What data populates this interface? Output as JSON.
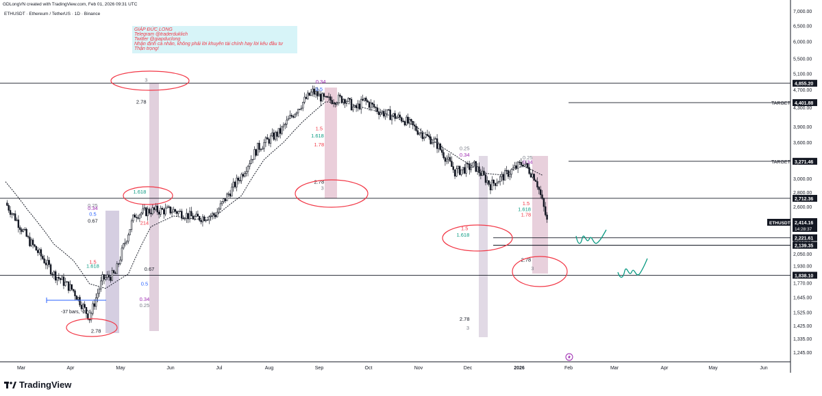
{
  "header": {
    "credit": "GDLongVN created with TradingView.com, Feb 01, 2026 09:31 UTC",
    "symbol_line": "ETHUSDT · Ethereum / TetherUS · 1D · Binance"
  },
  "annotation": {
    "lines": [
      "GIÁP ĐỨC LONG",
      "Telegram @traderduklich",
      "Twitter @giapduclong",
      "Nhận định cá nhân, không phải lời khuyên tài chính hay lời kêu đầu tư",
      "Thận trọng!"
    ]
  },
  "footer": {
    "brand": "TradingView"
  },
  "colors": {
    "candle": "#131722",
    "fib_red": "#f23645",
    "fib_teal": "#089981",
    "fib_blue": "#2962ff",
    "fib_purple": "#9c27b0",
    "target_line": "#131722",
    "drawing_green": "#089981"
  },
  "chart_data": {
    "type": "candlestick",
    "symbol": "ETHUSDT",
    "timeframe": "1D",
    "exchange": "Binance",
    "x_ticks": [
      "Mar",
      "Apr",
      "May",
      "Jun",
      "Jul",
      "Aug",
      "Sep",
      "Oct",
      "Nov",
      "Dec",
      "2026",
      "Feb",
      "Mar",
      "Apr",
      "May",
      "Jun"
    ],
    "y_ticks": [
      7000,
      6500,
      6000,
      5500,
      5100,
      4700,
      4300,
      3900,
      3600,
      3300,
      3000,
      2800,
      2600,
      2400,
      2200,
      2050,
      1930,
      1770,
      1645,
      1525,
      1425,
      1335,
      1245
    ],
    "y_tick_labels": [
      "7,000.00",
      "6,500.00",
      "6,000.00",
      "5,500.00",
      "5,100.00",
      "4,700.00",
      "4,300.00",
      "3,900.00",
      "3,600.00",
      "3,300.00",
      "3,000.00",
      "2,800.00",
      "2,600.00",
      "2,400.00",
      "2,200.00",
      "2,050.00",
      "1,930.00",
      "1,770.00",
      "1,645.00",
      "1,525.00",
      "1,425.00",
      "1,335.00",
      "1,245.00"
    ],
    "y_scale": "log",
    "y_range": [
      1165,
      7300
    ],
    "current_price": {
      "label": "ETHUSDT",
      "value": "2,414.16",
      "countdown": "14:28:37"
    },
    "price_levels": [
      {
        "value": 4855.2,
        "label": "4,855.20",
        "tag": ""
      },
      {
        "value": 4401.88,
        "label": "4,401.88",
        "tag": "TARGET"
      },
      {
        "value": 3271.46,
        "label": "3,271.46",
        "tag": "TARGET"
      },
      {
        "value": 2712.36,
        "label": "2,712.36",
        "tag": ""
      },
      {
        "value": 2221.61,
        "label": "2,221.61",
        "tag": ""
      },
      {
        "value": 2221.61,
        "label": "2,221.61",
        "tag": ""
      },
      {
        "value": 2139.35,
        "label": "2,139.35",
        "tag": ""
      },
      {
        "value": 1838.1,
        "label": "1,838.10",
        "tag": ""
      }
    ],
    "bars_label": "-37 bars, -37d",
    "fib_labels": [
      {
        "text": "3",
        "price": 4890,
        "day": 87,
        "color": "#787b86"
      },
      {
        "text": "2.78",
        "price": 4380,
        "day": 84,
        "color": "#131722"
      },
      {
        "text": "1.618",
        "price": 2780,
        "day": 83,
        "color": "#089981"
      },
      {
        "text": "0.25",
        "price": 2595,
        "day": 54,
        "color": "#787b86"
      },
      {
        "text": "0.34",
        "price": 2555,
        "day": 54,
        "color": "#9c27b0"
      },
      {
        "text": "0.5",
        "price": 2485,
        "day": 54,
        "color": "#2962ff"
      },
      {
        "text": "0.67",
        "price": 2400,
        "day": 54,
        "color": "#131722"
      },
      {
        "text": "1.5",
        "price": 1950,
        "day": 54,
        "color": "#f23645"
      },
      {
        "text": "1.618",
        "price": 1910,
        "day": 54,
        "color": "#089981"
      },
      {
        "text": "2.78",
        "price": 1375,
        "day": 56,
        "color": "#131722"
      },
      {
        "text": "214",
        "price": 2375,
        "day": 86,
        "color": "#f23645"
      },
      {
        "text": "0.67",
        "price": 1880,
        "day": 89,
        "color": "#131722"
      },
      {
        "text": "0.5",
        "price": 1745,
        "day": 86,
        "color": "#2962ff"
      },
      {
        "text": "0.34",
        "price": 1615,
        "day": 86,
        "color": "#9c27b0"
      },
      {
        "text": "0.25",
        "price": 1565,
        "day": 86,
        "color": "#787b86"
      },
      {
        "text": "0.34",
        "price": 4850,
        "day": 195,
        "color": "#9c27b0"
      },
      {
        "text": "0.5",
        "price": 4670,
        "day": 194,
        "color": "#2962ff"
      },
      {
        "text": "1.5",
        "price": 3830,
        "day": 194,
        "color": "#f23645"
      },
      {
        "text": "1.618",
        "price": 3690,
        "day": 193,
        "color": "#089981"
      },
      {
        "text": "1.78",
        "price": 3530,
        "day": 194,
        "color": "#f23645"
      },
      {
        "text": "2.78",
        "price": 2920,
        "day": 194,
        "color": "#131722"
      },
      {
        "text": "3",
        "price": 2830,
        "day": 196,
        "color": "#787b86"
      },
      {
        "text": "0.25",
        "price": 3460,
        "day": 284,
        "color": "#787b86"
      },
      {
        "text": "0.34",
        "price": 3350,
        "day": 284,
        "color": "#9c27b0"
      },
      {
        "text": "1.5",
        "price": 2310,
        "day": 284,
        "color": "#f23645"
      },
      {
        "text": "1.618",
        "price": 2235,
        "day": 283,
        "color": "#089981"
      },
      {
        "text": "2.78",
        "price": 1460,
        "day": 284,
        "color": "#131722"
      },
      {
        "text": "3",
        "price": 1395,
        "day": 286,
        "color": "#787b86"
      },
      {
        "text": "0.25",
        "price": 3305,
        "day": 323,
        "color": "#787b86"
      },
      {
        "text": "0.34",
        "price": 3230,
        "day": 323,
        "color": "#9c27b0"
      },
      {
        "text": "1.5",
        "price": 2620,
        "day": 322,
        "color": "#f23645"
      },
      {
        "text": "1.618",
        "price": 2545,
        "day": 321,
        "color": "#089981"
      },
      {
        "text": "1.78",
        "price": 2475,
        "day": 322,
        "color": "#f23645"
      },
      {
        "text": "2.78",
        "price": 1970,
        "day": 322,
        "color": "#131722"
      },
      {
        "text": "3",
        "price": 1885,
        "day": 326,
        "color": "#787b86"
      }
    ],
    "candles_anchor": [
      [
        0,
        2650
      ],
      [
        14,
        2200
      ],
      [
        30,
        1850
      ],
      [
        42,
        1700
      ],
      [
        52,
        1480
      ],
      [
        60,
        1800
      ],
      [
        68,
        1850
      ],
      [
        80,
        2500
      ],
      [
        90,
        2550
      ],
      [
        104,
        2550
      ],
      [
        118,
        2450
      ],
      [
        130,
        2500
      ],
      [
        146,
        3050
      ],
      [
        156,
        3500
      ],
      [
        170,
        3800
      ],
      [
        180,
        4250
      ],
      [
        190,
        4650
      ],
      [
        198,
        4450
      ],
      [
        210,
        4500
      ],
      [
        216,
        4250
      ],
      [
        222,
        4450
      ],
      [
        232,
        4200
      ],
      [
        246,
        4050
      ],
      [
        256,
        3800
      ],
      [
        266,
        3600
      ],
      [
        278,
        3100
      ],
      [
        290,
        3200
      ],
      [
        300,
        2900
      ],
      [
        312,
        3100
      ],
      [
        320,
        3250
      ],
      [
        328,
        3000
      ],
      [
        335,
        2414
      ]
    ],
    "ma_anchor": [
      [
        0,
        2950
      ],
      [
        14,
        2550
      ],
      [
        30,
        2150
      ],
      [
        42,
        1980
      ],
      [
        52,
        1760
      ],
      [
        62,
        1720
      ],
      [
        76,
        1850
      ],
      [
        90,
        2350
      ],
      [
        104,
        2480
      ],
      [
        118,
        2440
      ],
      [
        130,
        2480
      ],
      [
        146,
        2750
      ],
      [
        160,
        3300
      ],
      [
        172,
        3600
      ],
      [
        184,
        4000
      ],
      [
        198,
        4420
      ],
      [
        212,
        4380
      ],
      [
        226,
        4250
      ],
      [
        240,
        4100
      ],
      [
        254,
        3900
      ],
      [
        268,
        3550
      ],
      [
        282,
        3300
      ],
      [
        296,
        3080
      ],
      [
        308,
        3050
      ],
      [
        320,
        3200
      ],
      [
        332,
        3050
      ]
    ]
  }
}
